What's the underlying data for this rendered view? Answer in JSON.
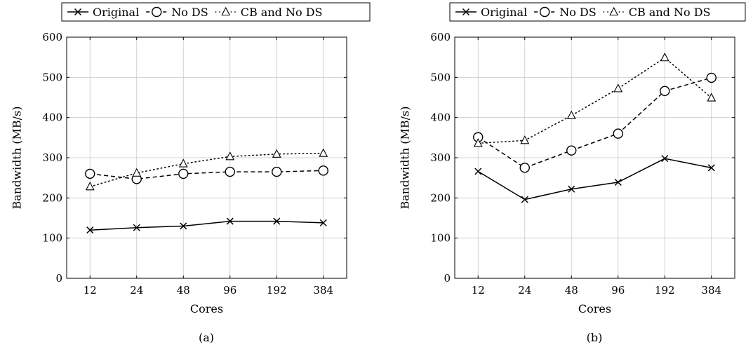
{
  "chart_data": [
    {
      "type": "line",
      "caption": "(a)",
      "categories": [
        "12",
        "24",
        "48",
        "96",
        "192",
        "384"
      ],
      "xlabel": "Cores",
      "ylabel": "Bandwidth (MB/s)",
      "ylim": [
        0,
        600
      ],
      "yticks": [
        0,
        100,
        200,
        300,
        400,
        500,
        600
      ],
      "grid": true,
      "legend": "top",
      "series": [
        {
          "name": "Original",
          "marker": "cross",
          "line": "solid",
          "color": "#000000",
          "values": [
            120,
            126,
            130,
            142,
            142,
            138
          ]
        },
        {
          "name": "No DS",
          "marker": "circle",
          "line": "dashed",
          "color": "#000000",
          "values": [
            260,
            247,
            260,
            265,
            265,
            268
          ]
        },
        {
          "name": "CB and No DS",
          "marker": "triangle",
          "line": "dotted",
          "color": "#000000",
          "values": [
            228,
            262,
            285,
            303,
            309,
            311
          ]
        }
      ]
    },
    {
      "type": "line",
      "caption": "(b)",
      "categories": [
        "12",
        "24",
        "48",
        "96",
        "192",
        "384"
      ],
      "xlabel": "Cores",
      "ylabel": "Bandwidth (MB/s)",
      "ylim": [
        0,
        600
      ],
      "yticks": [
        0,
        100,
        200,
        300,
        400,
        500,
        600
      ],
      "grid": true,
      "legend": "top",
      "series": [
        {
          "name": "Original",
          "marker": "cross",
          "line": "solid",
          "color": "#000000",
          "values": [
            266,
            196,
            222,
            239,
            298,
            275
          ]
        },
        {
          "name": "No DS",
          "marker": "circle",
          "line": "dashed",
          "color": "#000000",
          "values": [
            351,
            275,
            318,
            360,
            466,
            499
          ]
        },
        {
          "name": "CB and No DS",
          "marker": "triangle",
          "line": "dotted",
          "color": "#000000",
          "values": [
            336,
            343,
            405,
            472,
            549,
            449
          ]
        }
      ]
    }
  ]
}
